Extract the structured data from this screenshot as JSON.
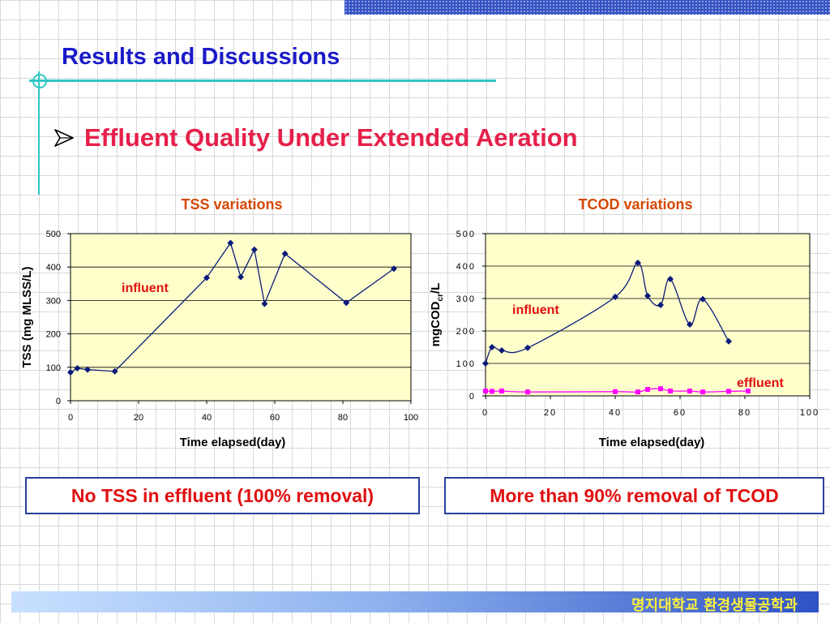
{
  "slide": {
    "title": "Results and Discussions",
    "bullet": "Effluent Quality Under Extended Aeration",
    "footer": "명지대학교 환경생물공학과"
  },
  "notes": {
    "tss": "No TSS in effluent (100% removal)",
    "tcod": "More than 90% removal of TCOD"
  },
  "colors": {
    "title": "#1a1ac8",
    "bullet": "#e6204a",
    "chart_title": "#d64800",
    "influent_label": "#e01010",
    "plot_bg": "#ffffcc",
    "influent_line": "#0a1a7a",
    "effluent_line": "#ff00ff",
    "rule": "#2ec6c6"
  },
  "chart_data": [
    {
      "type": "line",
      "title": "TSS variations",
      "xlabel": "Time elapsed(day)",
      "ylabel": "TSS (mg MLSS/L)",
      "xlim": [
        0,
        100
      ],
      "ylim": [
        0,
        500
      ],
      "xticks": [
        0,
        20,
        40,
        60,
        80,
        100
      ],
      "yticks": [
        0,
        100,
        200,
        300,
        400,
        500
      ],
      "grid": "horizontal",
      "annotations": [
        "influent"
      ],
      "series": [
        {
          "name": "influent",
          "x": [
            0,
            2,
            5,
            13,
            40,
            47,
            50,
            54,
            57,
            63,
            81,
            95
          ],
          "y": [
            85,
            97,
            93,
            88,
            368,
            472,
            370,
            452,
            290,
            440,
            293,
            395
          ]
        }
      ]
    },
    {
      "type": "line",
      "title": "TCOD variations",
      "xlabel": "Time elapsed(day)",
      "ylabel": "mgCOD",
      "ylabel_sub": "cr",
      "ylabel_suffix": "/L",
      "xlim": [
        0,
        100
      ],
      "ylim": [
        0,
        500
      ],
      "xticks": [
        0,
        20,
        40,
        60,
        80,
        100
      ],
      "yticks": [
        0,
        100,
        200,
        300,
        400,
        500
      ],
      "grid": "horizontal",
      "annotations": [
        "influent",
        "effluent"
      ],
      "series": [
        {
          "name": "influent",
          "x": [
            0,
            2,
            5,
            13,
            40,
            47,
            50,
            54,
            57,
            63,
            67,
            75
          ],
          "y": [
            100,
            150,
            140,
            148,
            305,
            410,
            308,
            280,
            360,
            220,
            298,
            168
          ]
        },
        {
          "name": "effluent",
          "x": [
            0,
            2,
            5,
            13,
            40,
            47,
            50,
            54,
            57,
            63,
            67,
            75,
            81
          ],
          "y": [
            15,
            14,
            15,
            12,
            13,
            12,
            20,
            22,
            15,
            15,
            12,
            14,
            15
          ]
        }
      ]
    }
  ]
}
